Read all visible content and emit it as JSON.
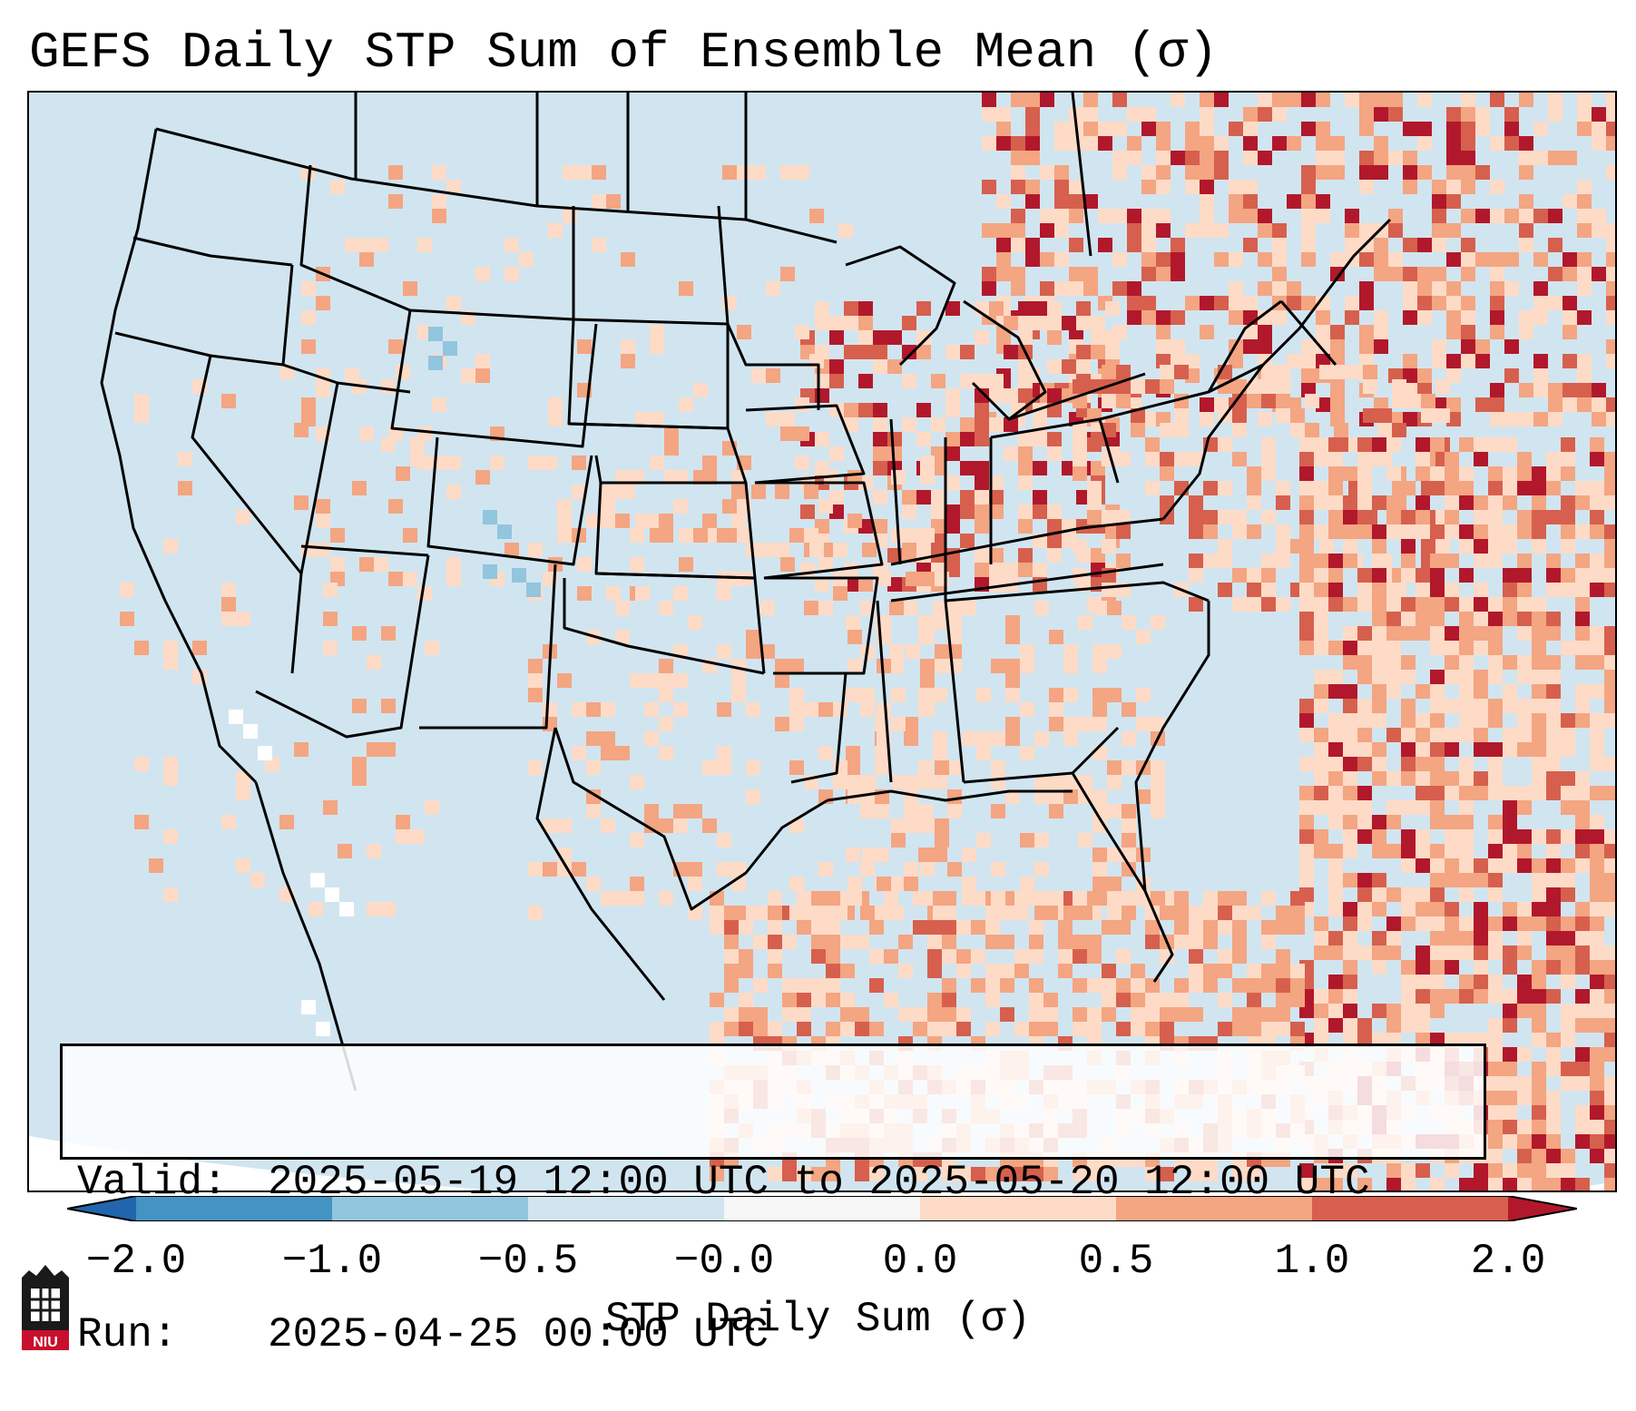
{
  "title": "GEFS Daily STP Sum of Ensemble Mean (σ)",
  "info": {
    "valid_key": "Valid:",
    "valid_value": "2025-05-19 12:00 UTC to 2025-05-20 12:00 UTC",
    "run_key": "Run:",
    "run_value": "2025-04-25 00:00 UTC"
  },
  "colorbar": {
    "label": "STP Daily Sum (σ)",
    "ticks": [
      "−2.0",
      "−1.0",
      "−0.5",
      "−0.0",
      "0.0",
      "0.5",
      "1.0",
      "2.0"
    ],
    "bins": [
      {
        "range": "below -2.0",
        "color": "#2166ac"
      },
      {
        "range": "-2.0 to -1.0",
        "color": "#4393c3"
      },
      {
        "range": "-1.0 to -0.5",
        "color": "#92c5de"
      },
      {
        "range": "-0.5 to -0.0",
        "color": "#d1e5f0"
      },
      {
        "range": "-0.0 to 0.0",
        "color": "#f7f7f7"
      },
      {
        "range": "0.0 to 0.5",
        "color": "#fddbc7"
      },
      {
        "range": "0.5 to 1.0",
        "color": "#f4a582"
      },
      {
        "range": "1.0 to 2.0",
        "color": "#d6604d"
      },
      {
        "range": "above 2.0",
        "color": "#b2182b"
      }
    ]
  },
  "logo": {
    "text": "NIU",
    "color": "#c8102e"
  }
}
